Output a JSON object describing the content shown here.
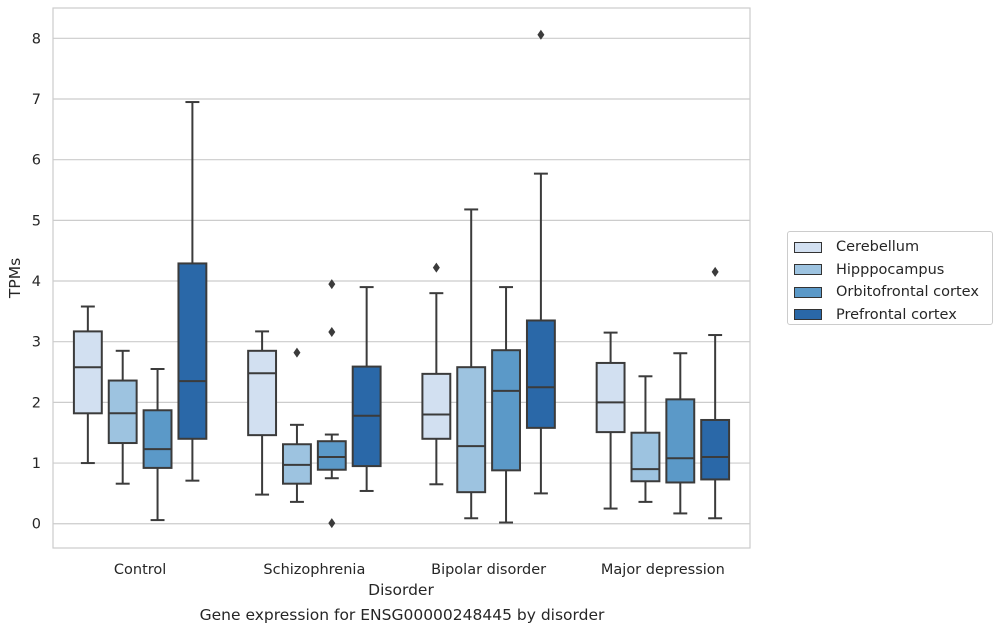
{
  "chart_data": {
    "type": "boxplot",
    "title": "Gene expression for ENSG00000248445 by disorder",
    "xlabel": "Disorder",
    "ylabel": "TPMs",
    "ylim": [
      -0.4,
      8.5
    ],
    "yticks": [
      0,
      1,
      2,
      3,
      4,
      5,
      6,
      7,
      8
    ],
    "grid": "horizontal",
    "legend_position": "right",
    "categories": [
      "Control",
      "Schizophrenia",
      "Bipolar disorder",
      "Major depression"
    ],
    "series": [
      {
        "name": "Cerebellum",
        "color": "#d2e0f1",
        "boxes": [
          {
            "whisker_low": 1.0,
            "q1": 1.82,
            "median": 2.58,
            "q3": 3.17,
            "whisker_high": 3.58,
            "outliers": []
          },
          {
            "whisker_low": 0.48,
            "q1": 1.46,
            "median": 2.48,
            "q3": 2.85,
            "whisker_high": 3.17,
            "outliers": []
          },
          {
            "whisker_low": 0.65,
            "q1": 1.4,
            "median": 1.8,
            "q3": 2.47,
            "whisker_high": 3.8,
            "outliers": [
              4.22
            ]
          },
          {
            "whisker_low": 0.25,
            "q1": 1.51,
            "median": 2.0,
            "q3": 2.65,
            "whisker_high": 3.15,
            "outliers": []
          }
        ]
      },
      {
        "name": "Hipppocampus",
        "color": "#9dc3e0",
        "boxes": [
          {
            "whisker_low": 0.66,
            "q1": 1.33,
            "median": 1.82,
            "q3": 2.36,
            "whisker_high": 2.85,
            "outliers": []
          },
          {
            "whisker_low": 0.36,
            "q1": 0.66,
            "median": 0.97,
            "q3": 1.31,
            "whisker_high": 1.63,
            "outliers": [
              2.82
            ]
          },
          {
            "whisker_low": 0.09,
            "q1": 0.52,
            "median": 1.28,
            "q3": 2.58,
            "whisker_high": 5.18,
            "outliers": []
          },
          {
            "whisker_low": 0.36,
            "q1": 0.7,
            "median": 0.9,
            "q3": 1.5,
            "whisker_high": 2.43,
            "outliers": []
          }
        ]
      },
      {
        "name": "Orbitofrontal cortex",
        "color": "#5b99c8",
        "boxes": [
          {
            "whisker_low": 0.06,
            "q1": 0.92,
            "median": 1.23,
            "q3": 1.87,
            "whisker_high": 2.55,
            "outliers": []
          },
          {
            "whisker_low": 0.75,
            "q1": 0.89,
            "median": 1.1,
            "q3": 1.36,
            "whisker_high": 1.47,
            "outliers": [
              0.01,
              3.16,
              3.95
            ]
          },
          {
            "whisker_low": 0.02,
            "q1": 0.88,
            "median": 2.19,
            "q3": 2.86,
            "whisker_high": 3.9,
            "outliers": []
          },
          {
            "whisker_low": 0.17,
            "q1": 0.68,
            "median": 1.08,
            "q3": 2.05,
            "whisker_high": 2.81,
            "outliers": []
          }
        ]
      },
      {
        "name": "Prefrontal cortex",
        "color": "#2a68a8",
        "boxes": [
          {
            "whisker_low": 0.71,
            "q1": 1.4,
            "median": 2.35,
            "q3": 4.29,
            "whisker_high": 6.95,
            "outliers": []
          },
          {
            "whisker_low": 0.54,
            "q1": 0.95,
            "median": 1.78,
            "q3": 2.59,
            "whisker_high": 3.9,
            "outliers": []
          },
          {
            "whisker_low": 0.5,
            "q1": 1.58,
            "median": 2.25,
            "q3": 3.35,
            "whisker_high": 5.77,
            "outliers": [
              8.06
            ]
          },
          {
            "whisker_low": 0.09,
            "q1": 0.73,
            "median": 1.1,
            "q3": 1.71,
            "whisker_high": 3.11,
            "outliers": [
              4.15
            ]
          }
        ]
      }
    ]
  }
}
